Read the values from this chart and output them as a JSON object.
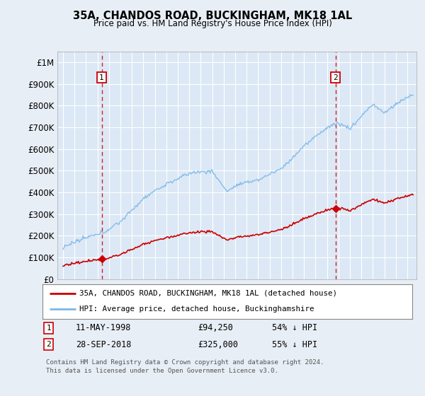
{
  "title": "35A, CHANDOS ROAD, BUCKINGHAM, MK18 1AL",
  "subtitle": "Price paid vs. HM Land Registry's House Price Index (HPI)",
  "hpi_label": "HPI: Average price, detached house, Buckinghamshire",
  "property_label": "35A, CHANDOS ROAD, BUCKINGHAM, MK18 1AL (detached house)",
  "ylim": [
    0,
    1050000
  ],
  "yticks": [
    0,
    100000,
    200000,
    300000,
    400000,
    500000,
    600000,
    700000,
    800000,
    900000,
    1000000
  ],
  "ytick_labels": [
    "£0",
    "£100K",
    "£200K",
    "£300K",
    "£400K",
    "£500K",
    "£600K",
    "£700K",
    "£800K",
    "£900K",
    "£1M"
  ],
  "hpi_color": "#7ab8e8",
  "property_color": "#cc0000",
  "dashed_color": "#cc0000",
  "bg_color": "#e8eef5",
  "plot_bg": "#dce8f5",
  "sale1_x": 1998.36,
  "sale1_y": 94250,
  "sale1_label": "1",
  "sale1_date": "11-MAY-1998",
  "sale1_price": "£94,250",
  "sale1_hpi": "54% ↓ HPI",
  "sale2_x": 2018.74,
  "sale2_y": 325000,
  "sale2_label": "2",
  "sale2_date": "28-SEP-2018",
  "sale2_price": "£325,000",
  "sale2_hpi": "55% ↓ HPI",
  "footer": "Contains HM Land Registry data © Crown copyright and database right 2024.\nThis data is licensed under the Open Government Licence v3.0.",
  "xlim_left": 1994.5,
  "xlim_right": 2025.8,
  "xticks": [
    1995,
    1996,
    1997,
    1998,
    1999,
    2000,
    2001,
    2002,
    2003,
    2004,
    2005,
    2006,
    2007,
    2008,
    2009,
    2010,
    2011,
    2012,
    2013,
    2014,
    2015,
    2016,
    2017,
    2018,
    2019,
    2020,
    2021,
    2022,
    2023,
    2024,
    2025
  ]
}
